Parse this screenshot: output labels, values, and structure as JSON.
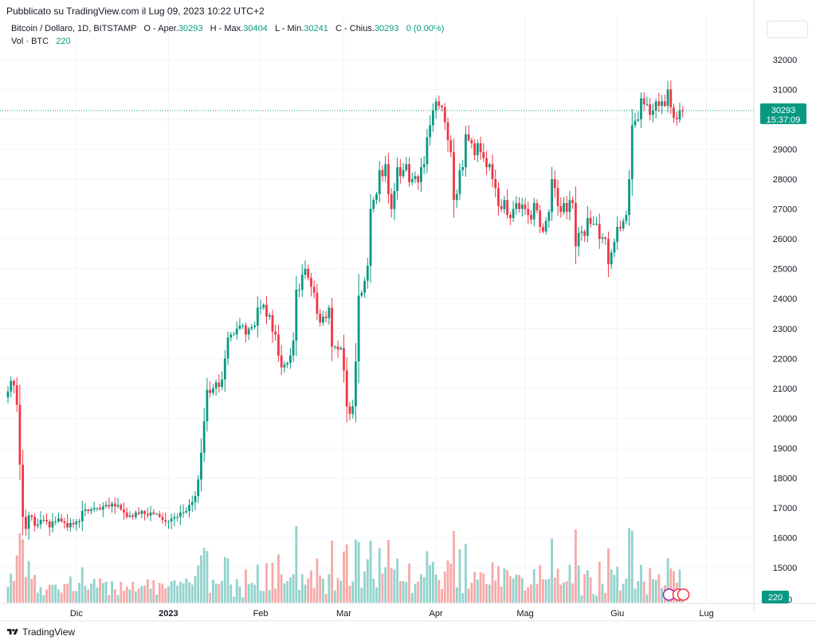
{
  "header": {
    "published": "Pubblicato su TradingView.com il Lug 09, 2023 10:22 UTC+2"
  },
  "legend": {
    "symbol": "Bitcoin / Dollaro, 1D, BITSTAMP",
    "open_label": "O - Aper.",
    "open": "30293",
    "high_label": "H - Max.",
    "high": "30404",
    "low_label": "L - Min.",
    "low": "30241",
    "close_label": "C - Chius.",
    "close": "30293",
    "change": "0 (0.00%)",
    "vol_label": "Vol · BTC",
    "vol": "220"
  },
  "footer": {
    "brand": "TradingView"
  },
  "colors": {
    "up": "#089981",
    "down": "#f23645",
    "up_vol": "#92d2cc",
    "down_vol": "#f7a9a7"
  },
  "chart_data": {
    "type": "candlestick",
    "title": "Bitcoin / Dollaro, 1D, BITSTAMP",
    "ylim": [
      14700,
      32400
    ],
    "yticks": [
      15000,
      16000,
      17000,
      18000,
      19000,
      20000,
      21000,
      22000,
      23000,
      24000,
      25000,
      26000,
      27000,
      28000,
      29000,
      30000,
      31000,
      32000
    ],
    "x_labels": [
      {
        "label": "Dic",
        "day": 23
      },
      {
        "label": "2023",
        "day": 54
      },
      {
        "label": "Feb",
        "day": 85
      },
      {
        "label": "Mar",
        "day": 113
      },
      {
        "label": "Apr",
        "day": 144
      },
      {
        "label": "Mag",
        "day": 174
      },
      {
        "label": "Giu",
        "day": 205
      },
      {
        "label": "Lug",
        "day": 235
      }
    ],
    "last_price": "30293",
    "countdown": "15:37:09",
    "last_volume": "220",
    "volume_tick": "0",
    "closes": [
      20900,
      21250,
      21100,
      20450,
      18450,
      16700,
      16300,
      16750,
      16700,
      16400,
      16450,
      16600,
      16600,
      16550,
      16350,
      16550,
      16550,
      16650,
      16550,
      16500,
      16350,
      16500,
      16450,
      16550,
      16550,
      16900,
      16950,
      16900,
      16950,
      17000,
      17000,
      16950,
      17050,
      17100,
      17050,
      17150,
      17050,
      17100,
      16950,
      16850,
      16700,
      16750,
      16700,
      16850,
      16800,
      16900,
      16800,
      16750,
      16850,
      16800,
      16800,
      16700,
      16600,
      16550,
      16550,
      16650,
      16700,
      16700,
      16850,
      16850,
      16900,
      17100,
      17200,
      17400,
      17950,
      18850,
      19900,
      20950,
      20850,
      21000,
      21200,
      21050,
      21300,
      22000,
      22700,
      22800,
      22800,
      23000,
      23100,
      23100,
      22800,
      23000,
      23050,
      23100,
      23700,
      23700,
      23800,
      23400,
      23450,
      22900,
      22800,
      22100,
      21700,
      21800,
      21850,
      22100,
      22600,
      24300,
      24300,
      24800,
      25000,
      24700,
      24400,
      24200,
      23500,
      23200,
      23400,
      23350,
      23700,
      22400,
      22400,
      22300,
      22350,
      21600,
      20400,
      20150,
      20400,
      21900,
      24100,
      24200,
      24600,
      25100,
      27000,
      27300,
      27500,
      28300,
      28100,
      28500,
      27500,
      27000,
      27600,
      28400,
      28100,
      28300,
      28500,
      27900,
      28000,
      28100,
      27900,
      28400,
      28500,
      29400,
      29800,
      30300,
      30600,
      30450,
      30400,
      29900,
      29300,
      28900,
      27300,
      27500,
      28300,
      28400,
      29500,
      29300,
      29200,
      28800,
      29200,
      28900,
      28700,
      28400,
      28500,
      28000,
      27700,
      27100,
      27000,
      27300,
      26800,
      26700,
      27000,
      27200,
      27000,
      27150,
      27000,
      26800,
      26650,
      27200,
      26950,
      26400,
      26250,
      26600,
      26900,
      28000,
      27700,
      27100,
      26900,
      27200,
      26900,
      27300,
      27200,
      25750,
      26200,
      26250,
      26100,
      26700,
      26500,
      26500,
      26500,
      26000,
      26050,
      26000,
      25150,
      25550,
      25900,
      26400,
      26350,
      26600,
      26800,
      28000,
      29800,
      29950,
      30000,
      30700,
      30500,
      30500,
      30150,
      30300,
      30600,
      30450,
      30600,
      30450,
      31000,
      30400,
      30050,
      30000,
      30300,
      30293
    ]
  }
}
